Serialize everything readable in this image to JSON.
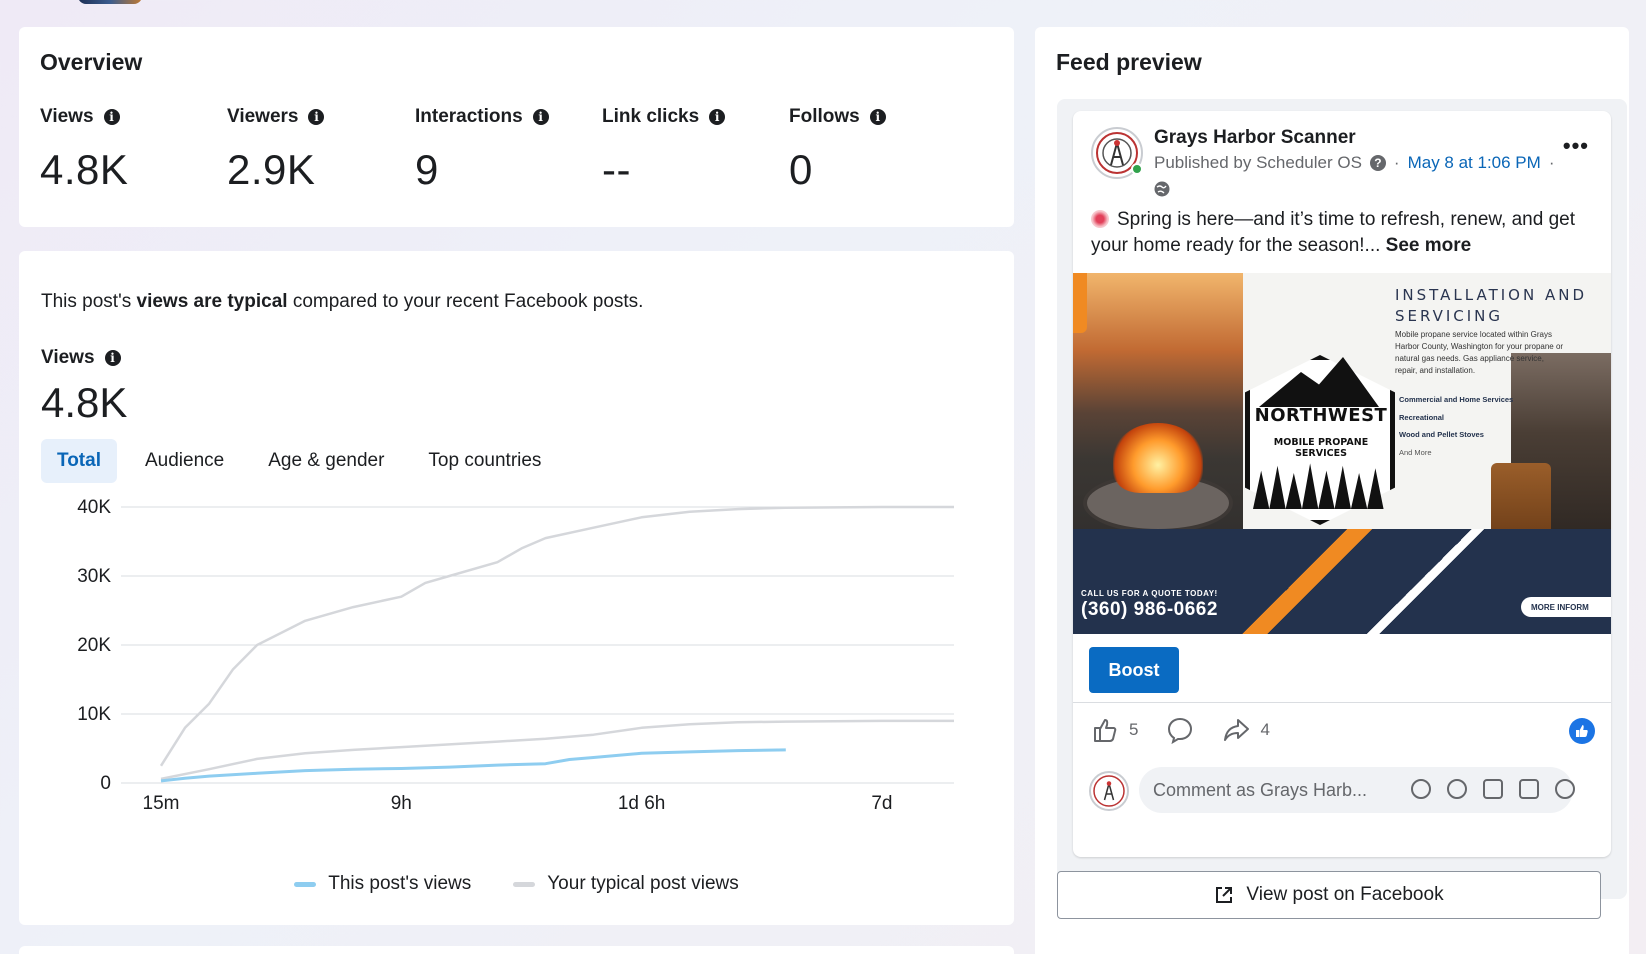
{
  "overview": {
    "title": "Overview",
    "metrics": [
      {
        "label": "Views",
        "value": "4.8K"
      },
      {
        "label": "Viewers",
        "value": "2.9K"
      },
      {
        "label": "Interactions",
        "value": "9"
      },
      {
        "label": "Link clicks",
        "value": "--"
      },
      {
        "label": "Follows",
        "value": "0"
      }
    ]
  },
  "performance": {
    "sentence_pre": "This post's ",
    "sentence_bold": "views are typical",
    "sentence_post": " compared to your recent Facebook posts.",
    "views_label": "Views",
    "views_value": "4.8K",
    "tabs": [
      "Total",
      "Audience",
      "Age & gender",
      "Top countries"
    ],
    "active_tab": "Total"
  },
  "chart_data": {
    "type": "line",
    "x_ticks": [
      "15m",
      "9h",
      "1d 6h",
      "7d"
    ],
    "y_ticks": [
      "0",
      "10K",
      "20K",
      "30K",
      "40K"
    ],
    "ylim": [
      0,
      40000
    ],
    "grid": true,
    "legend_position": "bottom-center",
    "series": [
      {
        "name": "This post's views",
        "color": "#8ecdf0",
        "values": [
          [
            0,
            300
          ],
          [
            0.05,
            700
          ],
          [
            0.1,
            1000
          ],
          [
            0.2,
            1400
          ],
          [
            0.3,
            1800
          ],
          [
            0.4,
            2000
          ],
          [
            0.5,
            2100
          ],
          [
            0.6,
            2300
          ],
          [
            0.7,
            2600
          ],
          [
            0.8,
            2800
          ],
          [
            0.85,
            3400
          ],
          [
            0.9,
            3700
          ],
          [
            0.95,
            4000
          ],
          [
            1.0,
            4300
          ],
          [
            1.1,
            4500
          ],
          [
            1.2,
            4700
          ],
          [
            1.3,
            4800
          ]
        ]
      },
      {
        "name": "Your typical post views",
        "color": "#d5d7db",
        "values": [
          [
            0,
            600
          ],
          [
            0.1,
            2000
          ],
          [
            0.2,
            3500
          ],
          [
            0.3,
            4300
          ],
          [
            0.4,
            4800
          ],
          [
            0.5,
            5200
          ],
          [
            0.6,
            5600
          ],
          [
            0.7,
            6000
          ],
          [
            0.8,
            6400
          ],
          [
            0.9,
            7000
          ],
          [
            1.0,
            8000
          ],
          [
            1.1,
            8500
          ],
          [
            1.2,
            8800
          ],
          [
            1.3,
            8900
          ],
          [
            1.5,
            9000
          ],
          [
            1.65,
            9000
          ]
        ]
      },
      {
        "name": "Your typical post views (range upper)",
        "color": "#d5d7db",
        "values": [
          [
            0,
            2500
          ],
          [
            0.05,
            8000
          ],
          [
            0.1,
            11500
          ],
          [
            0.15,
            16500
          ],
          [
            0.2,
            20000
          ],
          [
            0.3,
            23500
          ],
          [
            0.4,
            25500
          ],
          [
            0.5,
            27000
          ],
          [
            0.55,
            29000
          ],
          [
            0.6,
            30000
          ],
          [
            0.7,
            32000
          ],
          [
            0.75,
            34000
          ],
          [
            0.8,
            35500
          ],
          [
            0.9,
            37000
          ],
          [
            1.0,
            38500
          ],
          [
            1.1,
            39300
          ],
          [
            1.2,
            39700
          ],
          [
            1.3,
            39900
          ],
          [
            1.5,
            40000
          ],
          [
            1.65,
            40000
          ]
        ]
      }
    ]
  },
  "legend": {
    "this_post": "This post's views",
    "typical": "Your typical post views"
  },
  "feed": {
    "title": "Feed preview",
    "page_name": "Grays Harbor Scanner",
    "published_by": "Published by Scheduler OS",
    "date": "May 8 at 1:06 PM",
    "date_sep": "·",
    "text": "Spring is here—and it’s time to refresh, renew, and get your home ready for the season!...",
    "see_more": "See more",
    "image": {
      "heading": "INSTALLATION AND SERVICING",
      "desc": "Mobile propane service located within Grays Harbor County, Washington for your propane or natural gas needs. Gas appliance service, repair, and installation.",
      "services": [
        "Commercial and Home Services",
        "Recreational",
        "Wood and Pellet Stoves",
        "And More"
      ],
      "brand": "NORTHWEST",
      "brand_sub": "MOBILE PROPANE SERVICES",
      "call": "CALL US FOR A QUOTE TODAY!",
      "phone": "(360) 986-0662",
      "more_info": "MORE INFORM"
    },
    "boost": "Boost",
    "likes": "5",
    "shares": "4",
    "comment_placeholder": "Comment as Grays Harb...",
    "view_post": "View post on Facebook"
  }
}
